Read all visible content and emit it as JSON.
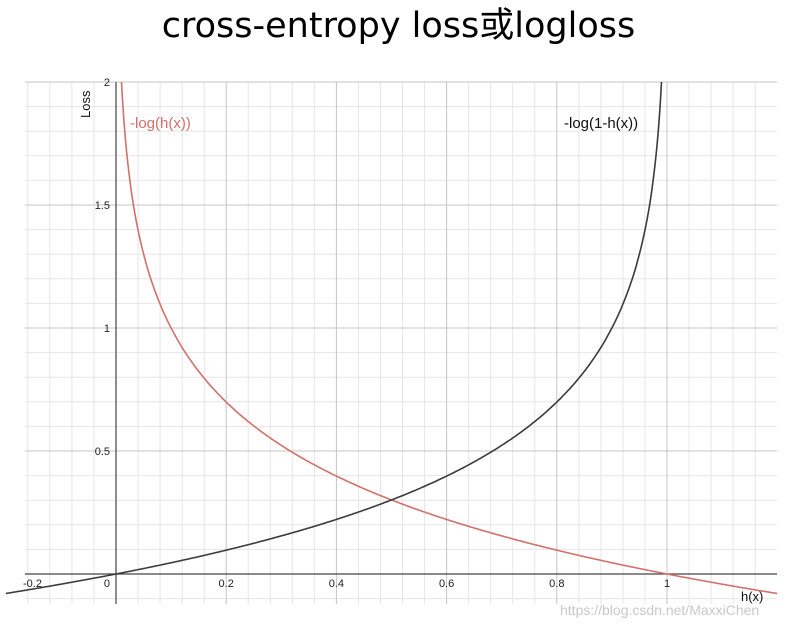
{
  "title": "cross-entropy loss或logloss",
  "watermark": "https://blog.csdn.net/MaxxiChen",
  "chart_data": {
    "type": "line",
    "xlabel": "h(x)",
    "ylabel": "Loss",
    "xlim": [
      -0.2,
      1.2
    ],
    "ylim": [
      -0.06,
      2.0
    ],
    "grid": true,
    "x_ticks": [
      "-0.2",
      "0.2",
      "0.4",
      "0.6",
      "0.8",
      "1"
    ],
    "y_ticks": [
      "0.5",
      "1",
      "1.5",
      "2"
    ],
    "origin_label": "0",
    "series": [
      {
        "name": "-log(h(x))",
        "color": "#d2706a",
        "x": [
          0.01,
          0.05,
          0.1,
          0.2,
          0.3,
          0.4,
          0.5,
          0.6,
          0.7,
          0.8,
          0.9,
          1.0,
          1.2
        ],
        "y": [
          2.0,
          1.301,
          1.0,
          0.699,
          0.523,
          0.398,
          0.301,
          0.222,
          0.155,
          0.097,
          0.046,
          0.0,
          -0.079
        ]
      },
      {
        "name": "-log(1-h(x))",
        "color": "#3b3b3b",
        "x": [
          -0.2,
          -0.1,
          0.0,
          0.1,
          0.2,
          0.3,
          0.4,
          0.5,
          0.6,
          0.7,
          0.8,
          0.9,
          0.95,
          0.99
        ],
        "y": [
          -0.079,
          -0.041,
          0.0,
          0.046,
          0.097,
          0.155,
          0.222,
          0.301,
          0.398,
          0.523,
          0.699,
          1.0,
          1.301,
          2.0
        ]
      }
    ]
  }
}
